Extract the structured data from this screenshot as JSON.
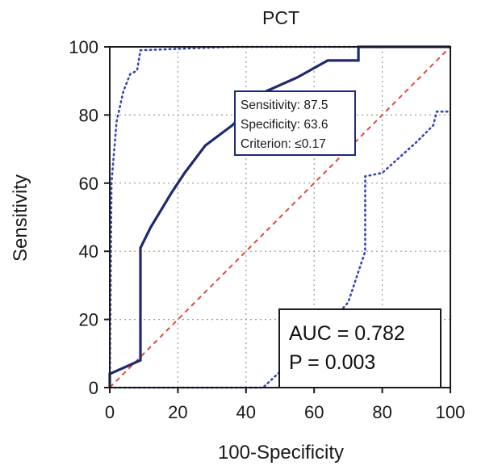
{
  "chart_data": {
    "type": "line",
    "title": "PCT",
    "xlabel": "100-Specificity",
    "ylabel": "Sensitivity",
    "xlim": [
      0,
      100
    ],
    "ylim": [
      0,
      100
    ],
    "xticks": [
      0,
      20,
      40,
      60,
      80,
      100
    ],
    "yticks": [
      0,
      20,
      40,
      60,
      80,
      100
    ],
    "grid": true,
    "series": [
      {
        "role": "roc-curve",
        "style": "solid",
        "color": "#1f2a6e",
        "x": [
          0,
          0,
          9,
          9,
          12,
          18,
          22,
          28,
          36,
          46,
          55,
          64,
          73,
          73,
          100
        ],
        "y": [
          0,
          4,
          8,
          41,
          47,
          57,
          63,
          71,
          77,
          87,
          91,
          96,
          96,
          100,
          100
        ]
      },
      {
        "role": "ci-upper",
        "style": "dotted",
        "color": "#3a45b8",
        "x": [
          0,
          0.5,
          2,
          4,
          6,
          8,
          9,
          36,
          100
        ],
        "y": [
          0,
          60,
          78,
          87,
          92,
          93,
          99,
          100,
          100
        ]
      },
      {
        "role": "ci-lower",
        "style": "dotted",
        "color": "#3a45b8",
        "x": [
          0,
          45,
          60,
          70,
          75,
          75,
          80,
          90,
          95,
          96,
          100
        ],
        "y": [
          0,
          0,
          14,
          25,
          40,
          62,
          63,
          72,
          77,
          81,
          81
        ]
      },
      {
        "role": "diagonal",
        "style": "dashed",
        "color": "#e04a3a",
        "x": [
          0,
          100
        ],
        "y": [
          0,
          100
        ]
      }
    ],
    "criterion_box": {
      "lines": [
        "Sensitivity: 87.5",
        "Specificity: 63.6",
        "Criterion: ≤0.17"
      ]
    },
    "stats_box": {
      "lines": [
        "AUC = 0.782",
        "P = 0.003"
      ]
    }
  }
}
